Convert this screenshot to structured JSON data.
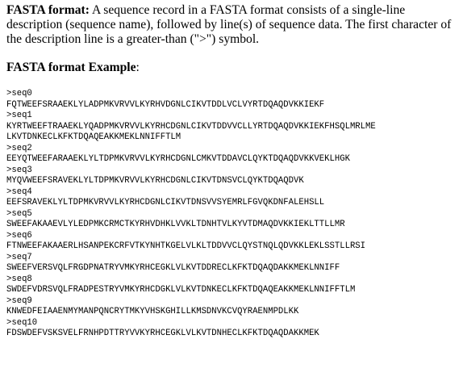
{
  "intro": {
    "term": "FASTA format:",
    "text": " A sequence record in a FASTA format consists of a single-line description (sequence name), followed by line(s) of sequence data. The first character of the description line is a greater-than (\">\") symbol."
  },
  "example": {
    "heading": "FASTA format Example",
    "colon": ":"
  },
  "records": [
    {
      "header": ">seq0",
      "lines": [
        "FQTWEEFSRAAEKLYLADPMKVRVVLKYRHVDGNLCIKVTDDLVCLVYRTDQAQDVKKIEKF"
      ]
    },
    {
      "header": ">seq1",
      "lines": [
        "KYRTWEEFTRAAEKLYQADPMKVRVVLKYRHCDGNLCIKVTDDVVCLLYRTDQAQDVKKIEKFHSQLMRLME",
        "LKVTDNKECLKFKTDQAQEAKKMEKLNNIFFTLM"
      ]
    },
    {
      "header": ">seq2",
      "lines": [
        "EEYQTWEEFARAAEKLYLTDPMKVRVVLKYRHCDGNLCMKVTDDAVCLQYKTDQAQDVKKVEKLHGK"
      ]
    },
    {
      "header": ">seq3",
      "lines": [
        "MYQVWEEFSRAVEKLYLTDPMKVRVVLKYRHCDGNLCIKVTDNSVCLQYKTDQAQDVK"
      ]
    },
    {
      "header": ">seq4",
      "lines": [
        "EEFSRAVEKLYLTDPMKVRVVLKYRHCDGNLCIKVTDNSVVSYEMRLFGVQKDNFALEHSLL"
      ]
    },
    {
      "header": ">seq5",
      "lines": [
        "SWEEFAKAAEVLYLEDPMKCRMCTKYRHVDHKLVVKLTDNHTVLKYVTDMAQDVKKIEKLTTLLMR"
      ]
    },
    {
      "header": ">seq6",
      "lines": [
        "FTNWEEFAKAAERLHSANPEKCRFVTKYNHTKGELVLKLTDDVVCLQYSTNQLQDVKKLEKLSSTLLRSI"
      ]
    },
    {
      "header": ">seq7",
      "lines": [
        "SWEEFVERSVQLFRGDPNATRYVMKYRHCEGKLVLKVTDDRECLKFKTDQAQDAKKMEKLNNIFF"
      ]
    },
    {
      "header": ">seq8",
      "lines": [
        "SWDEFVDRSVQLFRADPESTRYVMKYRHCDGKLVLKVTDNKECLKFKTDQAQEAKKMEKLNNIFFTLM"
      ]
    },
    {
      "header": ">seq9",
      "lines": [
        "KNWEDFEIAAENMYMANPQNCRYTMKYVHSKGHILLKMSDNVKCVQYRAENMPDLKK"
      ]
    },
    {
      "header": ">seq10",
      "lines": [
        "FDSWDEFVSKSVELFRNHPDTTRYVVKYRHCEGKLVLKVTDNHECLKFKTDQAQDAKKMEK"
      ]
    }
  ]
}
